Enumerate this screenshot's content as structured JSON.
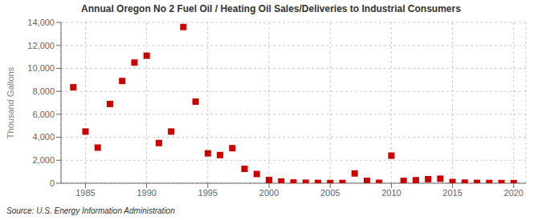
{
  "chart_data": {
    "type": "scatter",
    "title": "Annual Oregon No 2 Fuel Oil / Heating Oil Sales/Deliveries to Industrial Consumers",
    "ylabel": "Thousand Gallons",
    "annotations": [
      "Source: U.S. Energy Information Administration"
    ],
    "color": "#cc0000",
    "marker": "square",
    "grid": true,
    "xlim": [
      1983,
      2021
    ],
    "xticks": [
      1985,
      1990,
      1995,
      2000,
      2005,
      2010,
      2015,
      2020
    ],
    "ylim": [
      0,
      14000
    ],
    "yticks": [
      0,
      {
        "value": 2000,
        "label": "2,000"
      },
      {
        "value": 4000,
        "label": "4,000"
      },
      {
        "value": 6000,
        "label": "6,000"
      },
      {
        "value": 8000,
        "label": "8,000"
      },
      {
        "value": 10000,
        "label": "10,000"
      },
      {
        "value": 12000,
        "label": "12,000"
      },
      {
        "value": 14000,
        "label": "14,000"
      }
    ],
    "x": [
      1984,
      1985,
      1986,
      1987,
      1988,
      1989,
      1990,
      1991,
      1992,
      1993,
      1994,
      1995,
      1996,
      1997,
      1998,
      1999,
      2000,
      2001,
      2002,
      2003,
      2004,
      2005,
      2006,
      2007,
      2008,
      2009,
      2010,
      2011,
      2012,
      2013,
      2014,
      2015,
      2016,
      2017,
      2018,
      2019,
      2020
    ],
    "values": [
      8350,
      4500,
      3100,
      6900,
      8900,
      10500,
      11100,
      3500,
      4500,
      13600,
      7100,
      2600,
      2450,
      3050,
      1250,
      800,
      280,
      150,
      60,
      40,
      25,
      15,
      20,
      850,
      200,
      35,
      2400,
      200,
      260,
      350,
      390,
      100,
      50,
      30,
      20,
      15,
      10
    ]
  }
}
